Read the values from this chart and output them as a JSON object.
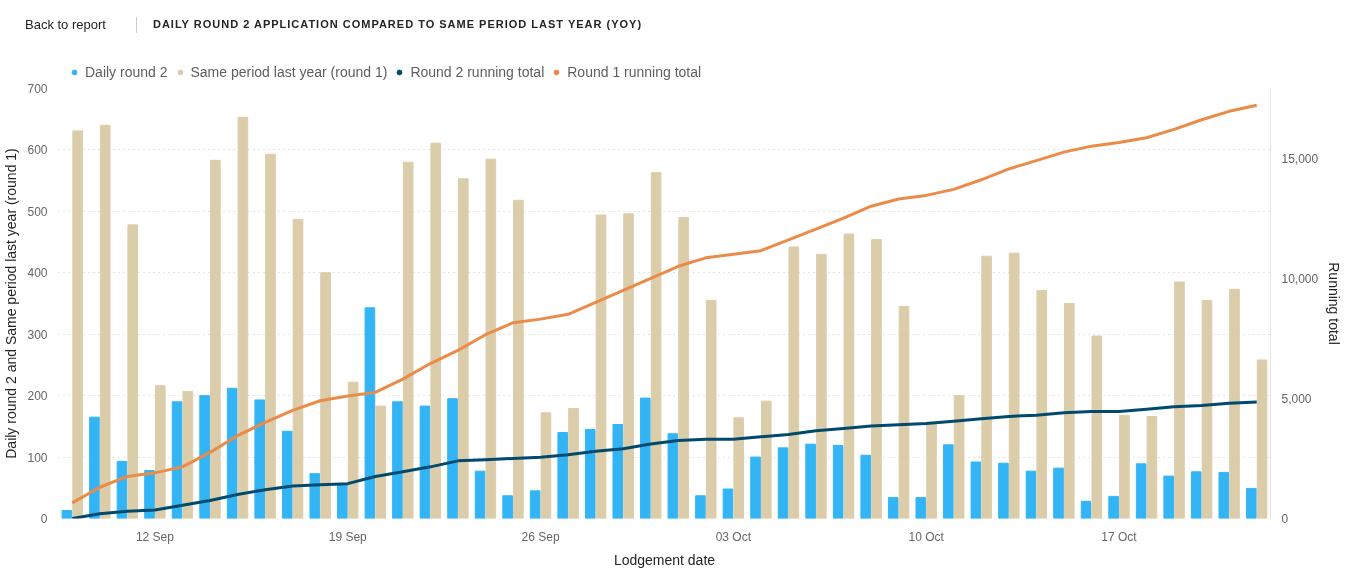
{
  "chart_data": {
    "type": "bar",
    "title": "DAILY ROUND 2 APPLICATION COMPARED TO SAME PERIOD LAST YEAR (YOY)",
    "annotations": [
      "Back to report"
    ],
    "xlabel": "Lodgement date",
    "ylabel": "Daily round 2 and Same period last year (round 1)",
    "y2label": "Running total",
    "categories": [
      null,
      null,
      null,
      "12 Sep",
      null,
      null,
      null,
      null,
      null,
      null,
      "19 Sep",
      null,
      null,
      null,
      null,
      null,
      null,
      "26 Sep",
      null,
      null,
      null,
      null,
      null,
      null,
      "03 Oct",
      null,
      null,
      null,
      null,
      null,
      null,
      "10 Oct",
      null,
      null,
      null,
      null,
      null,
      null,
      "17 Oct",
      null,
      null,
      null,
      null,
      null
    ],
    "series": [
      {
        "name": "Daily round 2",
        "color": "#33b5f5",
        "values": [
          13,
          165,
          93,
          78,
          190,
          200,
          212,
          193,
          142,
          73,
          55,
          343,
          190,
          183,
          195,
          77,
          37,
          45,
          140,
          145,
          153,
          196,
          138,
          37,
          48,
          100,
          115,
          121,
          119,
          103,
          34,
          34,
          120,
          92,
          90,
          77,
          82,
          28,
          36,
          89,
          69,
          76,
          75,
          49
        ]
      },
      {
        "name": "Same period last year (round 1)",
        "color": "#dccdaa",
        "values": [
          631,
          640,
          478,
          216,
          207,
          583,
          653,
          593,
          487,
          400,
          222,
          183,
          580,
          611,
          553,
          585,
          518,
          172,
          179,
          494,
          496,
          563,
          490,
          355,
          164,
          191,
          442,
          430,
          463,
          454,
          345,
          154,
          200,
          427,
          432,
          371,
          350,
          297,
          168,
          166,
          385,
          355,
          373,
          258
        ]
      },
      {
        "name": "Round 2 running total",
        "type": "line",
        "axis": "y2",
        "color": "#004a6e",
        "values": [
          0,
          200,
          300,
          350,
          550,
          750,
          1000,
          1200,
          1350,
          1400,
          1450,
          1750,
          1950,
          2150,
          2400,
          2450,
          2500,
          2550,
          2650,
          2800,
          2900,
          3100,
          3250,
          3300,
          3300,
          3400,
          3500,
          3650,
          3750,
          3850,
          3900,
          3950,
          4050,
          4150,
          4250,
          4300,
          4400,
          4450,
          4450,
          4550,
          4650,
          4700,
          4800,
          4850
        ]
      },
      {
        "name": "Round 1 running total",
        "type": "line",
        "axis": "y2",
        "color": "#ea8b49",
        "values": [
          650,
          1300,
          1750,
          1900,
          2150,
          2750,
          3450,
          4000,
          4500,
          4900,
          5100,
          5250,
          5800,
          6450,
          7000,
          7650,
          8150,
          8300,
          8500,
          9000,
          9500,
          10000,
          10500,
          10850,
          11000,
          11150,
          11600,
          12050,
          12500,
          13000,
          13300,
          13450,
          13700,
          14100,
          14550,
          14900,
          15250,
          15500,
          15650,
          15850,
          16200,
          16600,
          16950,
          17200
        ]
      }
    ],
    "ylim": [
      0,
      700
    ],
    "yticks": [
      0,
      100,
      200,
      300,
      400,
      500,
      600,
      700
    ],
    "y2lim": [
      0,
      17900
    ],
    "y2ticks": [
      0,
      {
        "value": 5000,
        "label": "5,000"
      },
      {
        "value": 10000,
        "label": "10,000"
      },
      {
        "value": 15000,
        "label": "15,000"
      }
    ],
    "grid": "y",
    "legend": "top left",
    "line_style": "solid"
  }
}
